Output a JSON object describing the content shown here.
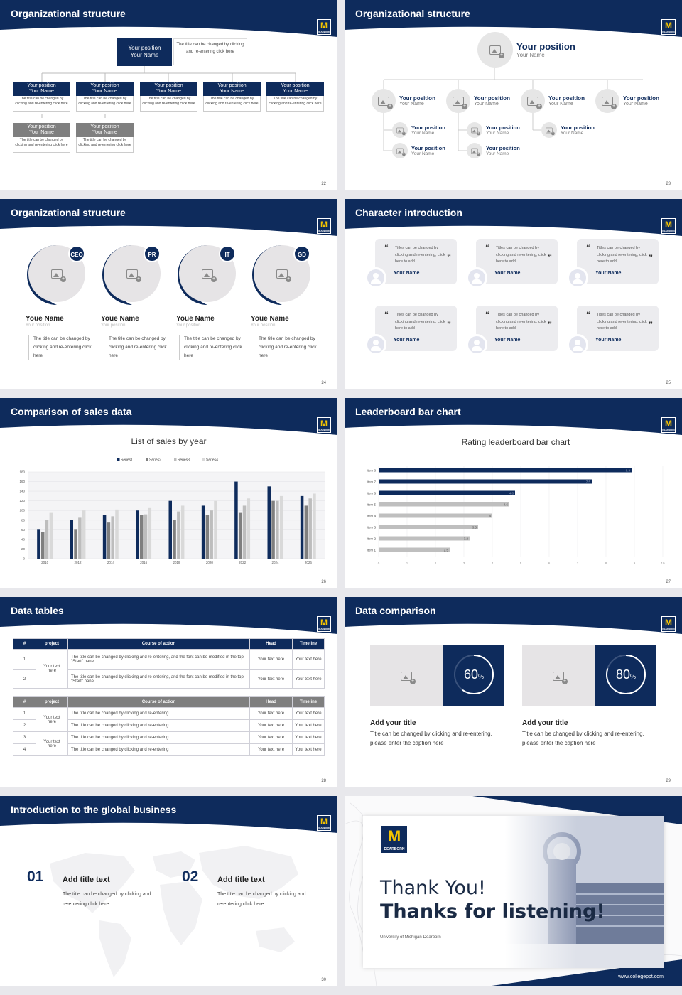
{
  "colors": {
    "navy": "#0e2b5c",
    "gray_box": "#7f7f7f",
    "light_bar": "#bfbfbf",
    "logo_gold": "#f5c400"
  },
  "logo": {
    "letter": "M",
    "sub": "DEARBORN"
  },
  "slides": {
    "s22": {
      "title": "Organizational structure",
      "page": "22",
      "top": {
        "position": "Your position",
        "name": "Your Name",
        "note": "The title can be changed by clicking and re-entering click here"
      },
      "row1": [
        {
          "position": "Your position",
          "name": "Your Name",
          "desc": "The title can be changed by clicking and re-entering click here"
        },
        {
          "position": "Your position",
          "name": "Your Name",
          "desc": "The title can be changed by clicking and re-entering click here"
        },
        {
          "position": "Your position",
          "name": "Your Name",
          "desc": "The title can be changed by clicking and re-entering click here"
        },
        {
          "position": "Your position",
          "name": "Your Name",
          "desc": "The title can be changed by clicking and re-entering click here"
        },
        {
          "position": "Your position",
          "name": "Your Name",
          "desc": "The title can be changed by clicking and re-entering click here"
        }
      ],
      "row2": [
        {
          "position": "Your position",
          "name": "Your Name",
          "desc": "The title can be changed by clicking and re-entering click here"
        },
        {
          "position": "Your position",
          "name": "Your Name",
          "desc": "The title can be changed by clicking and re-entering click here"
        }
      ]
    },
    "s23": {
      "title": "Organizational structure",
      "page": "23",
      "top": {
        "position": "Your position",
        "name": "Your Name"
      },
      "level2": [
        {
          "position": "Your position",
          "name": "Your Name"
        },
        {
          "position": "Your position",
          "name": "Your Name"
        },
        {
          "position": "Your position",
          "name": "Your Name"
        },
        {
          "position": "Your position",
          "name": "Your Name"
        }
      ],
      "level3": [
        {
          "position": "Your position",
          "name": "Your Name"
        },
        {
          "position": "Your position",
          "name": "Your Name"
        },
        {
          "position": "Your position",
          "name": "Your Name"
        },
        {
          "position": "Your position",
          "name": "Your Name"
        },
        {
          "position": "Your position",
          "name": "Your Name"
        }
      ]
    },
    "s24": {
      "title": "Organizational structure",
      "page": "24",
      "people": [
        {
          "badge": "CEO",
          "name": "Youe Name",
          "position": "Your position",
          "desc": "The title can be changed by clicking and re-entering click here"
        },
        {
          "badge": "PR",
          "name": "Youe Name",
          "position": "Your position",
          "desc": "The title can be changed by clicking and re-entering click here"
        },
        {
          "badge": "IT",
          "name": "Youe Name",
          "position": "Your position",
          "desc": "The title can be changed by clicking and re-entering click here"
        },
        {
          "badge": "GD",
          "name": "Youe Name",
          "position": "Your position",
          "desc": "The title can be changed by clicking and re-entering click here"
        }
      ]
    },
    "s25": {
      "title": "Character introduction",
      "page": "25",
      "quotes": [
        {
          "text": "Titles can be changed by clicking and re-entering, click here to add",
          "name": "Your Name"
        },
        {
          "text": "Titles can be changed by clicking and re-entering, click here to add",
          "name": "Your Name"
        },
        {
          "text": "Titles can be changed by clicking and re-entering, click here to add",
          "name": "Your Name"
        },
        {
          "text": "Titles can be changed by clicking and re-entering, click here to add",
          "name": "Your Name"
        },
        {
          "text": "Titles can be changed by clicking and re-entering, click here to add",
          "name": "Your Name"
        },
        {
          "text": "Titles can be changed by clicking and re-entering, click here to add",
          "name": "Your Name"
        }
      ]
    },
    "s26": {
      "title": "Comparison of sales data",
      "page": "26"
    },
    "s27": {
      "title": "Leaderboard bar chart",
      "page": "27"
    },
    "s28": {
      "title": "Data tables",
      "page": "28",
      "headers": [
        "#",
        "project",
        "Course of action",
        "Head",
        "Timeline"
      ],
      "table1": {
        "project": "Your text here",
        "rows": [
          {
            "num": "1",
            "action": "The title can be changed by clicking and re-entering, and the font can be modified in the top \"Start\" panel",
            "head": "Your text here",
            "time": "Your text here"
          },
          {
            "num": "2",
            "action": "The title can be changed by clicking and re-entering, and the font can be modified in the top \"Start\" panel",
            "head": "Your text here",
            "time": "Your text here"
          }
        ]
      },
      "table2": {
        "projects": [
          "Your text here",
          "Your text here"
        ],
        "rows": [
          {
            "num": "1",
            "action": "The title can be changed by clicking and re-entering",
            "head": "Your text here",
            "time": "Your text here"
          },
          {
            "num": "2",
            "action": "The title can be changed by clicking and re-entering",
            "head": "Your text here",
            "time": "Your text here"
          },
          {
            "num": "3",
            "action": "The title can be changed by clicking and re-entering",
            "head": "Your text here",
            "time": "Your text here"
          },
          {
            "num": "4",
            "action": "The title can be changed by clicking and re-entering",
            "head": "Your text here",
            "time": "Your text here"
          }
        ]
      }
    },
    "s29": {
      "title": "Data comparison",
      "page": "29",
      "cards": [
        {
          "value": 60,
          "num": "60",
          "unit": "%",
          "title": "Add your title",
          "text": "Title can be changed by clicking and re-entering, please enter the caption here"
        },
        {
          "value": 80,
          "num": "80",
          "unit": "%",
          "title": "Add your title",
          "text": "Title can be changed by clicking and re-entering, please enter the caption here"
        }
      ]
    },
    "s30": {
      "title": "Introduction to the global business",
      "page": "30",
      "items": [
        {
          "num": "01",
          "title": "Add title text",
          "text": "The title can be changed by clicking and re-entering click here"
        },
        {
          "num": "02",
          "title": "Add title text",
          "text": "The title can be changed by clicking and re-entering click here"
        }
      ]
    },
    "s31": {
      "thanks1": "Thank You!",
      "thanks2": "Thanks for listening!",
      "university": "University of Michigan-Dearborn",
      "website": "www.collegeppt.com"
    }
  },
  "chart_data": [
    {
      "type": "bar",
      "title": "List of sales by year",
      "categories": [
        "2010",
        "2012",
        "2014",
        "2016",
        "2018",
        "2020",
        "2022",
        "2024",
        "2026"
      ],
      "series": [
        {
          "name": "Series1",
          "values": [
            60,
            80,
            90,
            100,
            120,
            110,
            160,
            150,
            130
          ]
        },
        {
          "name": "Series2",
          "values": [
            55,
            60,
            75,
            90,
            80,
            90,
            95,
            120,
            110
          ]
        },
        {
          "name": "Series3",
          "values": [
            80,
            85,
            88,
            92,
            98,
            100,
            110,
            120,
            125
          ]
        },
        {
          "name": "Series4",
          "values": [
            95,
            100,
            102,
            105,
            110,
            120,
            125,
            130,
            135
          ]
        }
      ],
      "yticks": [
        "0",
        "20",
        "40",
        "60",
        "80",
        "100",
        "120",
        "140",
        "160",
        "180"
      ],
      "ylim": [
        0,
        180
      ],
      "legend": "top"
    },
    {
      "type": "bar",
      "orientation": "horizontal",
      "title": "Rating leaderboard bar chart",
      "categories": [
        "Item 1",
        "Item 2",
        "Item 3",
        "Item 4",
        "Item 5",
        "Item 6",
        "Item 7",
        "Item 8"
      ],
      "values": [
        2.5,
        3.2,
        3.5,
        4,
        4.6,
        4.8,
        7.5,
        8.9
      ],
      "highlight": [
        "Item 6",
        "Item 7",
        "Item 8"
      ],
      "xticks": [
        "0",
        "1",
        "2",
        "3",
        "4",
        "5",
        "6",
        "7",
        "8",
        "9",
        "10"
      ],
      "xlim": [
        0,
        10
      ]
    }
  ]
}
